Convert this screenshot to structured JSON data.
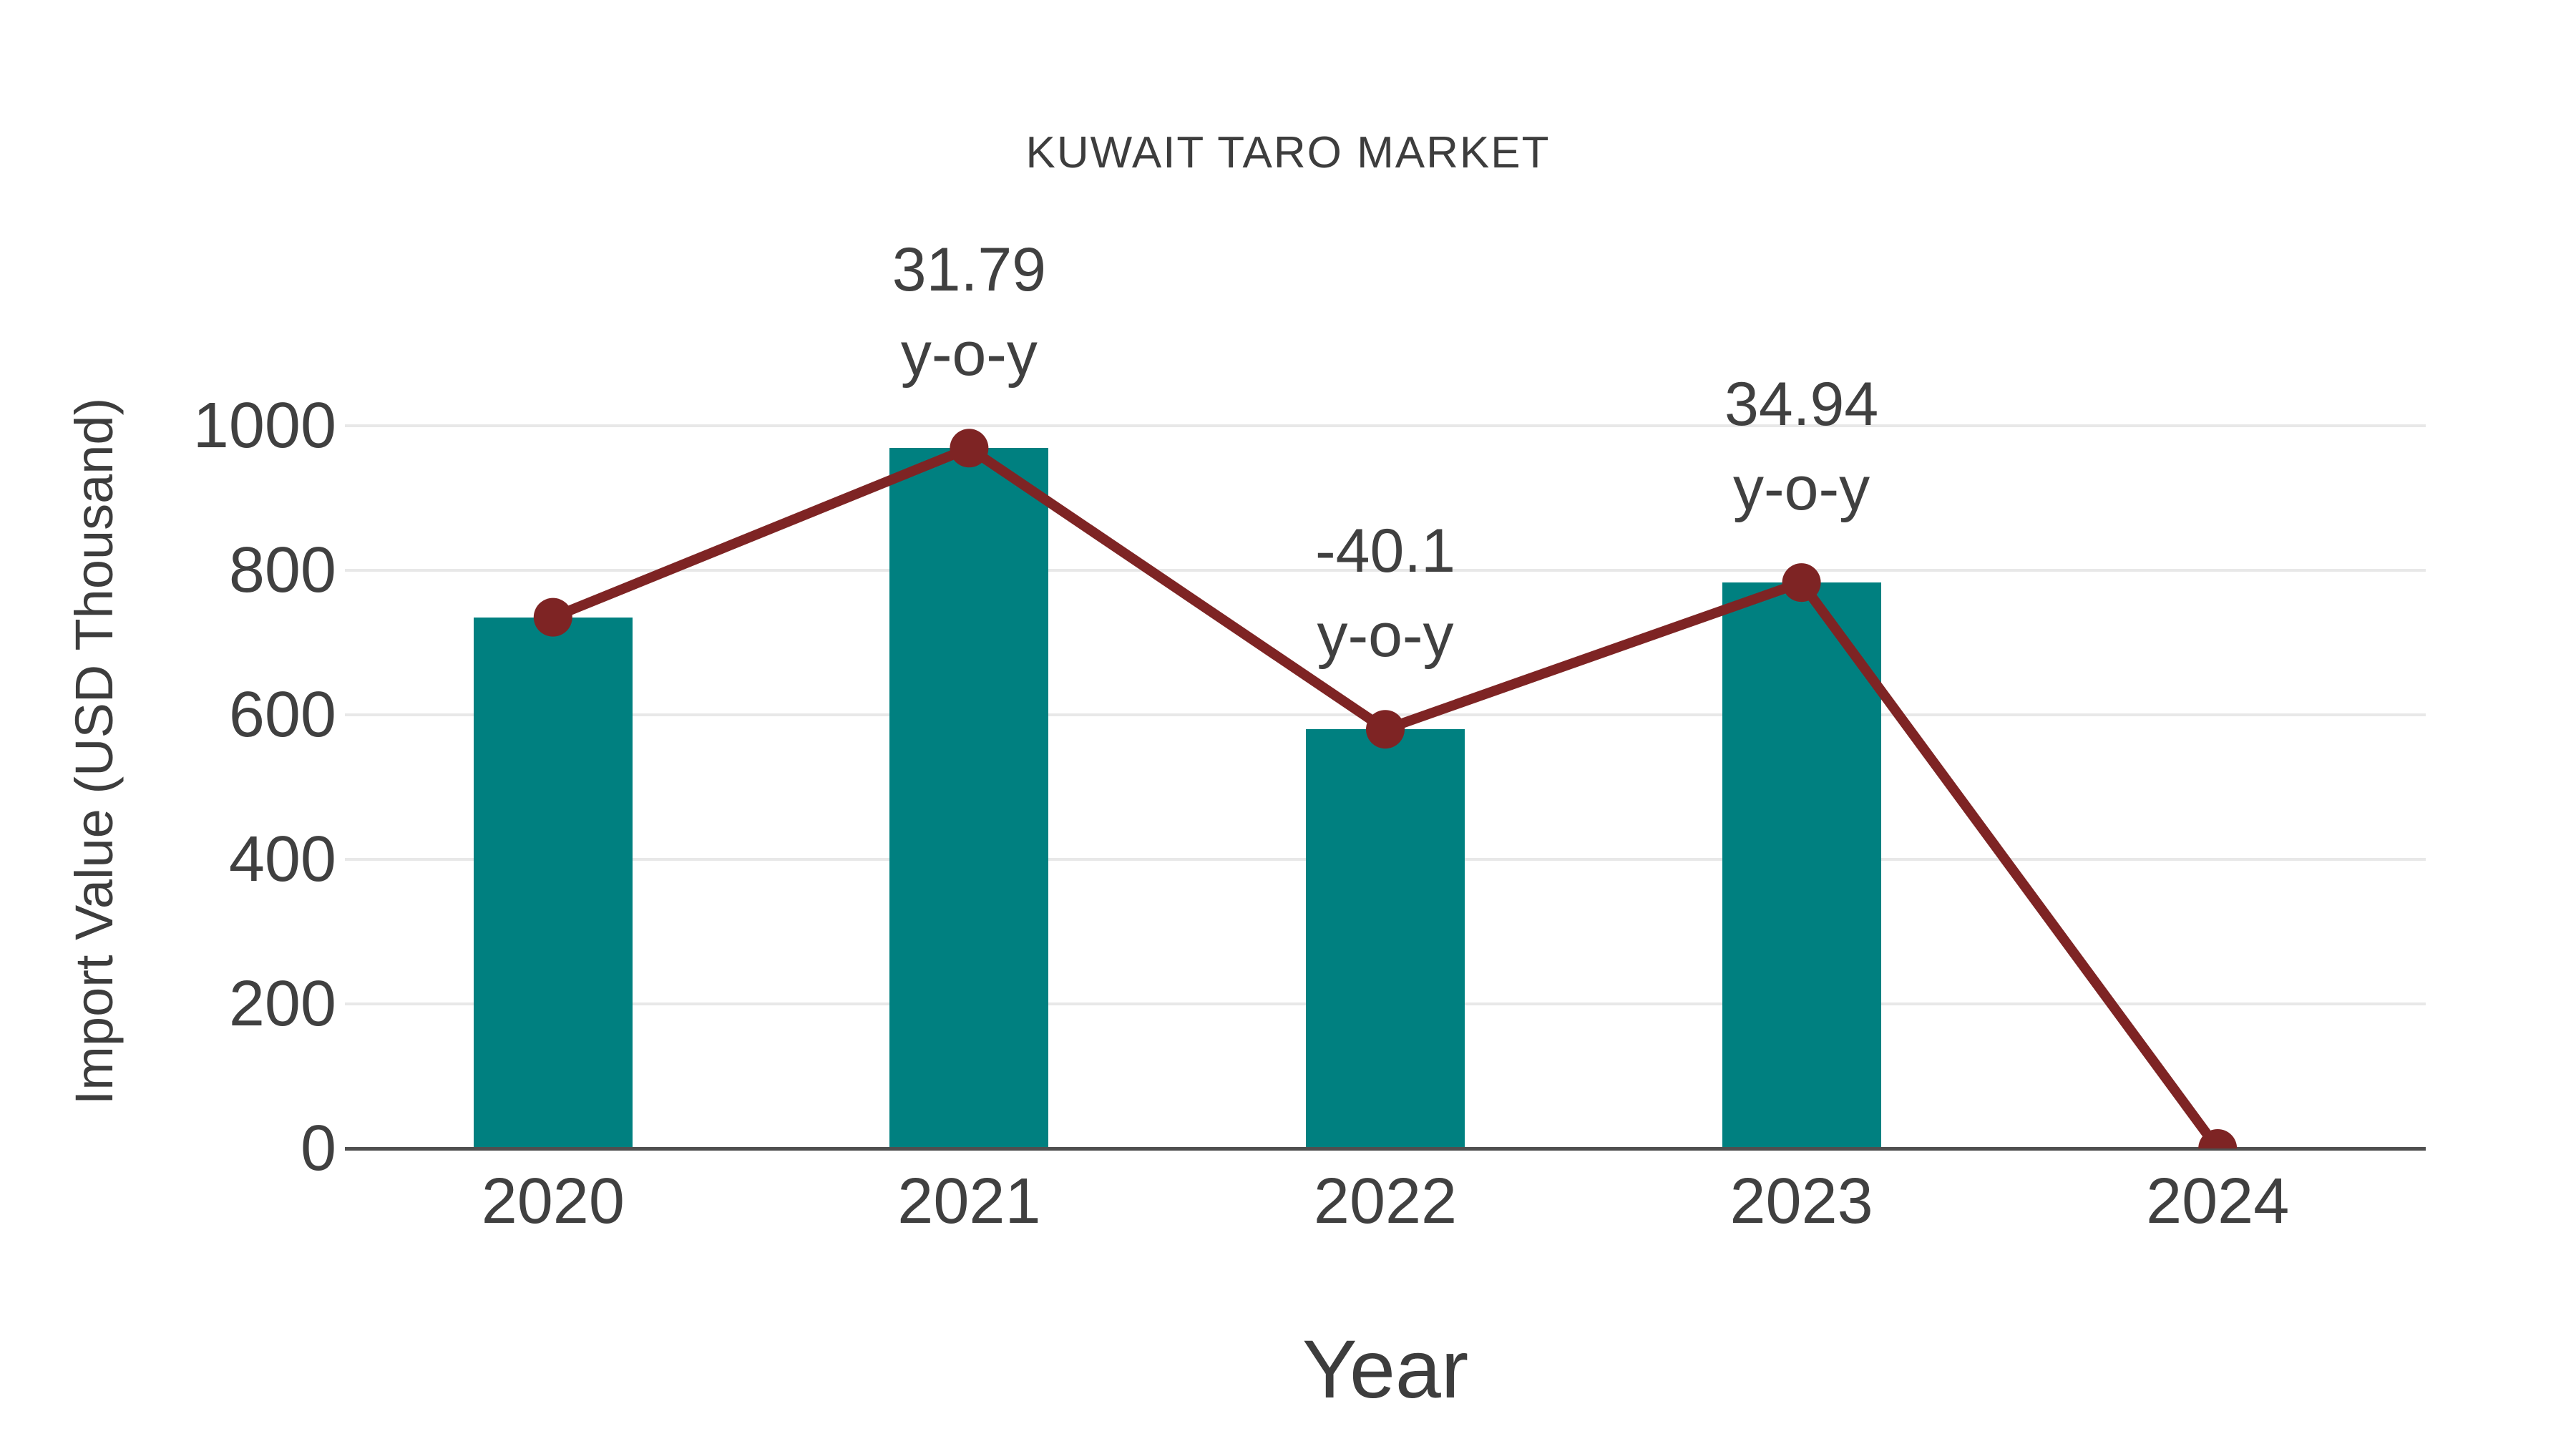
{
  "chart_data": {
    "type": "bar",
    "overlay": "line-with-markers",
    "title": "KUWAIT TARO MARKET",
    "xlabel": "Year",
    "ylabel": "Import Value (USD Thousand)",
    "categories": [
      "2020",
      "2021",
      "2022",
      "2023",
      "2024"
    ],
    "values": [
      735,
      969,
      580,
      783,
      0
    ],
    "line_values": [
      735,
      969,
      580,
      783,
      0
    ],
    "annotations": [
      {
        "category": "2021",
        "lines": [
          "31.79",
          "y-o-y"
        ]
      },
      {
        "category": "2022",
        "lines": [
          "-40.1",
          "y-o-y"
        ]
      },
      {
        "category": "2023",
        "lines": [
          "34.94",
          "y-o-y"
        ]
      }
    ],
    "ylim": [
      0,
      1000
    ],
    "yticks": [
      0,
      200,
      400,
      600,
      800,
      1000
    ],
    "grid": "horizontal",
    "legend": "none"
  },
  "colors": {
    "bar": "#008080",
    "line": "#7e2424",
    "grid": "#e8e8e8",
    "axis": "#4f4f4f",
    "text": "#3d3d3d"
  }
}
